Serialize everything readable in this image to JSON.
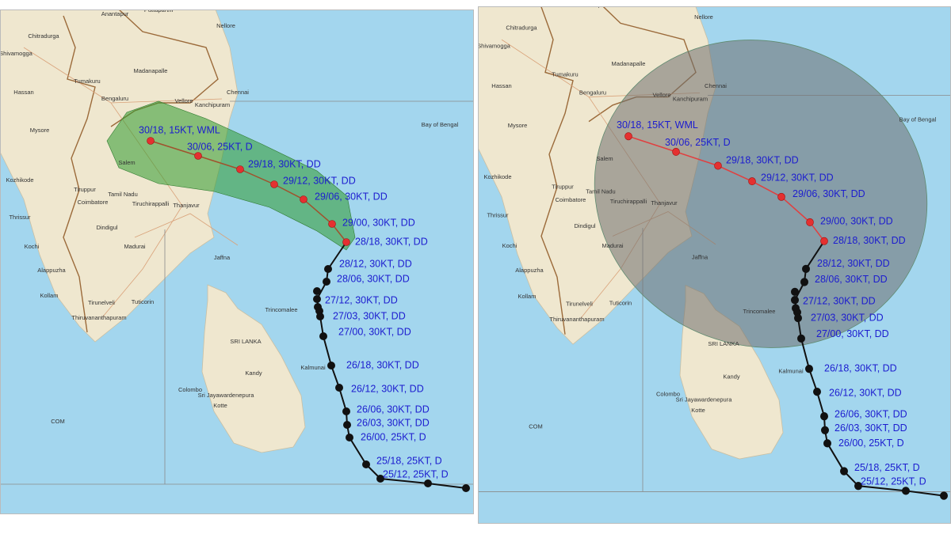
{
  "forecast_track": [
    "30/18, 15KT, WML",
    "30/06, 25KT, D",
    "29/18, 30KT, DD",
    "29/12, 30KT, DD",
    "29/06, 30KT, DD",
    "29/00, 30KT, DD",
    "28/18, 30KT, DD"
  ],
  "observed_track": [
    "28/12, 30KT, DD",
    "28/06, 30KT, DD",
    "27/12, 30KT, DD",
    "27/03, 30KT, DD",
    "27/00, 30KT, DD",
    "26/18, 30KT, DD",
    "26/12, 30KT, DD",
    "26/06, 30KT, DD",
    "26/03, 30KT, DD",
    "26/00, 25KT, D",
    "25/18, 25KT, D",
    "25/12, 25KT, D"
  ],
  "places": [
    "Anantapur",
    "Puttaparthi",
    "Nellore",
    "Chitradurga",
    "Shivamogga",
    "Madanapalle",
    "Tumakuru",
    "Hassan",
    "Bengaluru",
    "Kanchipuram",
    "Chennai",
    "Mysore",
    "Salem",
    "Vellore",
    "Kozhikode",
    "Tiruppur",
    "Coimbatore",
    "Tamil Nadu",
    "Tiruchirappalli",
    "Thanjavur",
    "Thrissur",
    "Dindigul",
    "Kochi",
    "Madurai",
    "Alappuzha",
    "Kollam",
    "Tirunelveli",
    "Tuticorin",
    "Thiruvananthapuram",
    "Jaffna",
    "Trincomalee",
    "SRI LANKA",
    "Kandy",
    "Kalmunai",
    "Colombo",
    "Sri Jayawardenepura",
    "Kotte",
    "COM",
    "Bay of Bengal"
  ]
}
